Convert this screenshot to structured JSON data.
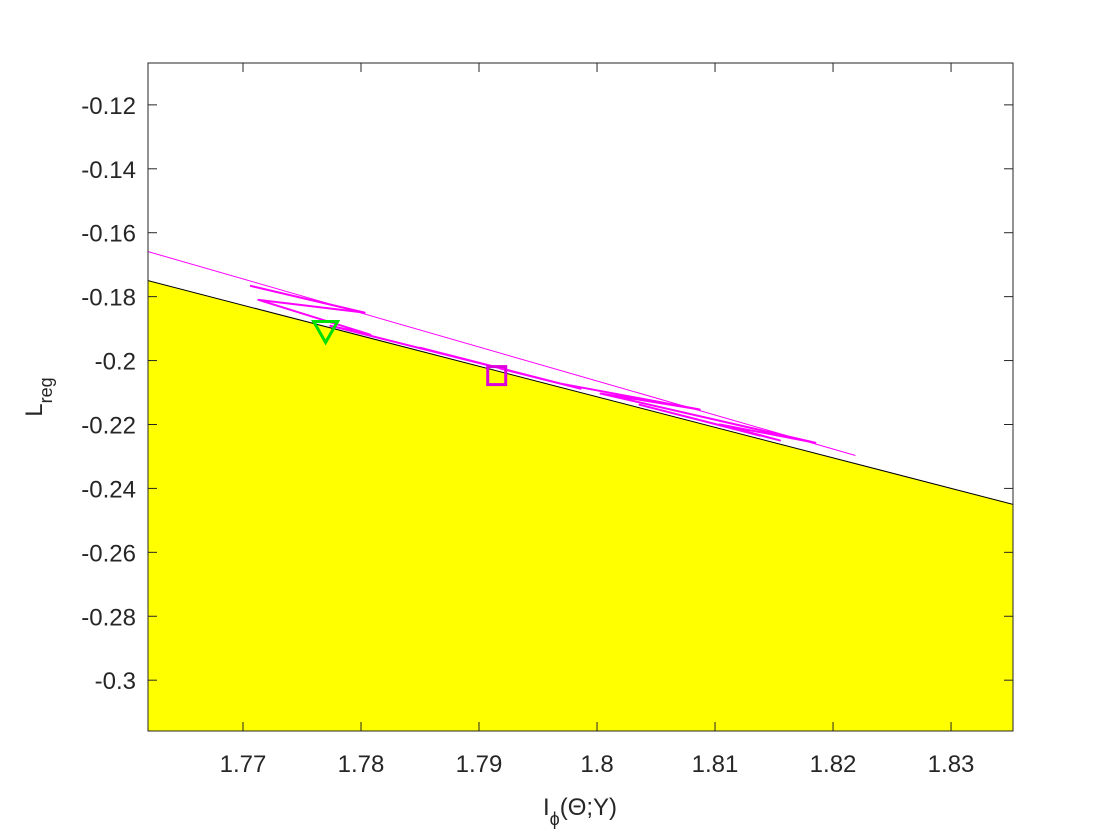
{
  "chart_data": {
    "type": "line",
    "xlabel": [
      "I",
      "ϕ",
      "(Θ;Y)"
    ],
    "ylabel": [
      "L",
      "reg"
    ],
    "xlim": [
      1.76195,
      1.83525
    ],
    "ylim": [
      -0.3159,
      -0.1069
    ],
    "xticks": [
      1.77,
      1.78,
      1.79,
      1.8,
      1.81,
      1.82,
      1.83
    ],
    "yticks": [
      -0.3,
      -0.28,
      -0.26,
      -0.24,
      -0.22,
      -0.2,
      -0.18,
      -0.16,
      -0.14,
      -0.12
    ],
    "series": [
      {
        "color": "#000000",
        "fill": "#ffff00",
        "x": [
          1.76195,
          1.83525
        ],
        "values": [
          -0.175,
          -0.245
        ]
      },
      {
        "color": "#ff00ff",
        "x": [
          1.76195,
          1.8219
        ],
        "values": [
          -0.1659,
          -0.2297
        ]
      },
      {
        "color": "#ff00ff",
        "width": 2,
        "x": [
          1.7706,
          1.7803,
          1.7713,
          1.7808,
          1.7774,
          1.7909,
          1.785,
          1.7986,
          1.7918,
          1.7969,
          1.8087,
          1.8003,
          1.8185,
          1.8104,
          1.8155,
          1.8036,
          1.8138
        ],
        "values": [
          -0.1766,
          -0.185,
          -0.181,
          -0.1919,
          -0.1891,
          -0.2016,
          -0.196,
          -0.2088,
          -0.2025,
          -0.2072,
          -0.2153,
          -0.2103,
          -0.2257,
          -0.22,
          -0.225,
          -0.2138,
          -0.2235
        ]
      },
      {
        "color": "#00dd00",
        "marker": "triangle-down",
        "x": [
          1.777
        ],
        "values": [
          -0.1909
        ]
      },
      {
        "color": "#dd00dd",
        "marker": "square",
        "x": [
          1.7915
        ],
        "values": [
          -0.2047
        ]
      }
    ]
  }
}
